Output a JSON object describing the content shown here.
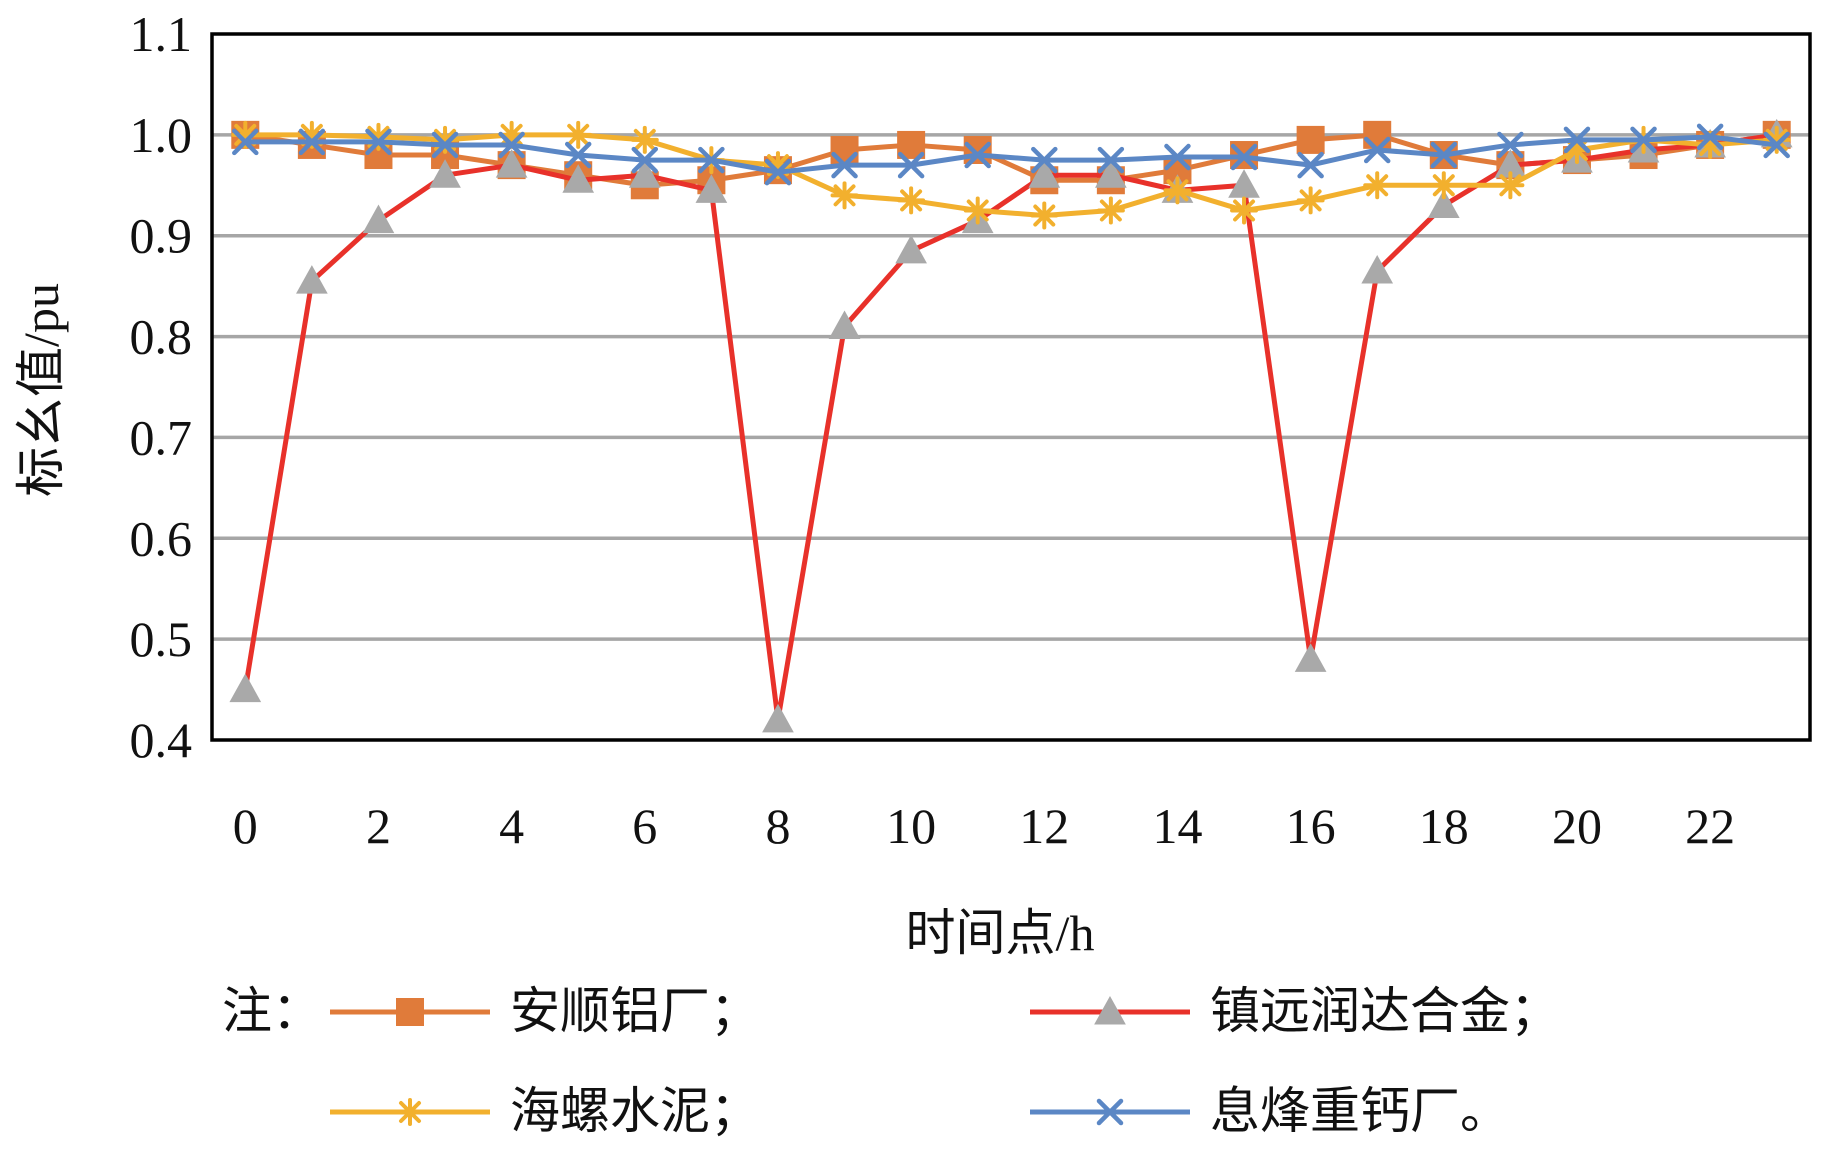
{
  "chart_data": {
    "type": "line",
    "xlabel": "时间点/h",
    "ylabel": "标幺值/pu",
    "xlim": [
      0,
      23
    ],
    "ylim": [
      0.4,
      1.1
    ],
    "x": [
      0,
      1,
      2,
      3,
      4,
      5,
      6,
      7,
      8,
      9,
      10,
      11,
      12,
      13,
      14,
      15,
      16,
      17,
      18,
      19,
      20,
      21,
      22,
      23
    ],
    "x_ticks": [
      0,
      2,
      4,
      6,
      8,
      10,
      12,
      14,
      16,
      18,
      20,
      22
    ],
    "x_tick_labels": [
      "0",
      "2",
      "4",
      "6",
      "8",
      "10",
      "12",
      "14",
      "16",
      "18",
      "20",
      "22"
    ],
    "y_ticks": [
      0.4,
      0.5,
      0.6,
      0.7,
      0.8,
      0.9,
      1.0,
      1.1
    ],
    "y_tick_labels": [
      "0.4",
      "0.5",
      "0.6",
      "0.7",
      "0.8",
      "0.9",
      "1.0",
      "1.1"
    ],
    "grid": true,
    "legend_prefix": "注：",
    "series": [
      {
        "name": "安顺铝厂；",
        "color": "#E07B3A",
        "marker": "square",
        "values": [
          1.0,
          0.99,
          0.98,
          0.98,
          0.97,
          0.96,
          0.95,
          0.955,
          0.965,
          0.985,
          0.99,
          0.985,
          0.955,
          0.955,
          0.965,
          0.98,
          0.995,
          1.0,
          0.98,
          0.97,
          0.975,
          0.98,
          0.99,
          1.0
        ]
      },
      {
        "name": "镇远润达合金；",
        "color": "#E8312A",
        "marker": "triangle",
        "values": [
          0.45,
          0.855,
          0.915,
          0.96,
          0.97,
          0.955,
          0.96,
          0.945,
          0.42,
          0.81,
          0.885,
          0.915,
          0.96,
          0.96,
          0.945,
          0.95,
          0.48,
          0.865,
          0.93,
          0.97,
          0.975,
          0.985,
          0.99,
          1.0
        ]
      },
      {
        "name": "海螺水泥；",
        "color": "#F2B02E",
        "marker": "asterisk",
        "values": [
          1.0,
          1.0,
          0.998,
          0.995,
          1.0,
          1.0,
          0.995,
          0.975,
          0.97,
          0.94,
          0.935,
          0.925,
          0.92,
          0.925,
          0.945,
          0.925,
          0.935,
          0.95,
          0.95,
          0.95,
          0.985,
          0.995,
          0.99,
          0.995
        ]
      },
      {
        "name": "息烽重钙厂。",
        "color": "#5B87C5",
        "marker": "x",
        "values": [
          0.993,
          0.993,
          0.993,
          0.99,
          0.99,
          0.98,
          0.975,
          0.975,
          0.963,
          0.97,
          0.97,
          0.98,
          0.975,
          0.975,
          0.978,
          0.978,
          0.97,
          0.985,
          0.98,
          0.99,
          0.995,
          0.995,
          0.998,
          0.99
        ]
      }
    ]
  }
}
